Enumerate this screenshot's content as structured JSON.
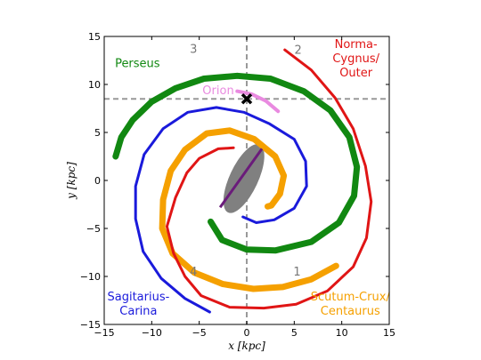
{
  "chart_data": {
    "type": "line",
    "xlabel": "x [kpc]",
    "ylabel": "y [kpc]",
    "xlim": [
      -15,
      15
    ],
    "ylim": [
      -15,
      15
    ],
    "xticks": [
      "−15",
      "−10",
      "−5",
      "0",
      "5",
      "10",
      "15"
    ],
    "yticks": [
      "−15",
      "−10",
      "−5",
      "0",
      "5",
      "10",
      "15"
    ],
    "grid": false,
    "sun": {
      "x": 0,
      "y": 8.5,
      "marker": "x",
      "color": "#000000"
    },
    "reference_lines": {
      "x": 0,
      "y": 8.5,
      "color": "#999999",
      "style": "dashed"
    },
    "bar": {
      "center": [
        -0.3,
        0.2
      ],
      "width": 3.0,
      "height": 7.8,
      "angle_deg": 25,
      "color": "#808080"
    },
    "long_bar": {
      "from": [
        -2.8,
        -2.8
      ],
      "to": [
        1.6,
        3.3
      ],
      "color": "#6a1b7a"
    },
    "quadrant_labels": [
      {
        "text": "1",
        "x": 5.3,
        "y": -9.6
      },
      {
        "text": "2",
        "x": 5.4,
        "y": 13.5
      },
      {
        "text": "3",
        "x": -5.6,
        "y": 13.6
      },
      {
        "text": "4",
        "x": -5.6,
        "y": -9.6
      }
    ],
    "series": [
      {
        "name": "Perseus",
        "color": "#118811",
        "width": 7,
        "points": [
          [
            -13.8,
            2.5
          ],
          [
            -13.2,
            4.5
          ],
          [
            -12.0,
            6.3
          ],
          [
            -10.0,
            8.2
          ],
          [
            -7.5,
            9.6
          ],
          [
            -4.5,
            10.6
          ],
          [
            -1.0,
            10.9
          ],
          [
            2.5,
            10.6
          ],
          [
            6.0,
            9.3
          ],
          [
            8.8,
            7.3
          ],
          [
            10.8,
            4.5
          ],
          [
            11.6,
            1.4
          ],
          [
            11.3,
            -1.6
          ],
          [
            9.7,
            -4.4
          ],
          [
            6.8,
            -6.4
          ],
          [
            3.0,
            -7.3
          ],
          [
            0.0,
            -7.2
          ],
          [
            -2.6,
            -6.2
          ],
          [
            -3.8,
            -4.3
          ]
        ]
      },
      {
        "name": "Sagitarius-\nCarina",
        "color": "#1a1adb",
        "width": 3,
        "points": [
          [
            -3.9,
            -13.7
          ],
          [
            -6.5,
            -12.3
          ],
          [
            -9.0,
            -10.2
          ],
          [
            -10.9,
            -7.4
          ],
          [
            -11.7,
            -4.0
          ],
          [
            -11.7,
            -0.6
          ],
          [
            -10.8,
            2.7
          ],
          [
            -8.8,
            5.4
          ],
          [
            -6.2,
            7.1
          ],
          [
            -3.2,
            7.6
          ],
          [
            -0.3,
            7.1
          ],
          [
            2.4,
            5.9
          ],
          [
            5.0,
            4.3
          ],
          [
            6.2,
            2.0
          ],
          [
            6.3,
            -0.6
          ],
          [
            5.0,
            -2.9
          ],
          [
            2.9,
            -4.1
          ],
          [
            1.0,
            -4.4
          ],
          [
            -0.4,
            -3.8
          ]
        ]
      },
      {
        "name": "Scutum-Crux/\nCentaurus",
        "color": "#f5a000",
        "width": 7,
        "points": [
          [
            9.4,
            -8.9
          ],
          [
            6.8,
            -10.3
          ],
          [
            3.8,
            -11.1
          ],
          [
            0.7,
            -11.3
          ],
          [
            -2.5,
            -10.8
          ],
          [
            -5.5,
            -9.6
          ],
          [
            -7.8,
            -7.6
          ],
          [
            -8.9,
            -5.0
          ],
          [
            -8.8,
            -2.0
          ],
          [
            -8.0,
            1.0
          ],
          [
            -6.5,
            3.2
          ],
          [
            -4.2,
            4.9
          ],
          [
            -1.8,
            5.2
          ],
          [
            0.8,
            4.3
          ],
          [
            3.0,
            2.5
          ],
          [
            3.9,
            0.5
          ],
          [
            3.5,
            -1.4
          ],
          [
            2.6,
            -2.6
          ],
          [
            2.2,
            -2.7
          ]
        ]
      },
      {
        "name": "Norma-\nCygnus/\nOuter",
        "color": "#e01515",
        "width": 3,
        "points": [
          [
            4.0,
            13.6
          ],
          [
            6.8,
            11.5
          ],
          [
            9.3,
            8.6
          ],
          [
            11.2,
            5.4
          ],
          [
            12.5,
            1.5
          ],
          [
            13.1,
            -2.2
          ],
          [
            12.6,
            -6.0
          ],
          [
            11.2,
            -9.0
          ],
          [
            8.5,
            -11.5
          ],
          [
            5.2,
            -12.9
          ],
          [
            1.8,
            -13.3
          ],
          [
            -1.8,
            -13.2
          ],
          [
            -4.8,
            -12.0
          ],
          [
            -6.5,
            -10.0
          ],
          [
            -7.7,
            -7.6
          ],
          [
            -8.4,
            -4.8
          ],
          [
            -7.5,
            -1.8
          ],
          [
            -6.3,
            0.8
          ],
          [
            -5.0,
            2.3
          ],
          [
            -3.0,
            3.3
          ],
          [
            -1.4,
            3.4
          ]
        ]
      },
      {
        "name": "Orion",
        "color": "#e98ae0",
        "width": 4,
        "points": [
          [
            -1.0,
            9.3
          ],
          [
            0.5,
            9.0
          ],
          [
            2.0,
            8.3
          ],
          [
            3.3,
            7.2
          ]
        ]
      }
    ],
    "arm_labels": [
      {
        "series": 0,
        "x": -11.5,
        "y": 11.8
      },
      {
        "series": 1,
        "x": -11.4,
        "y": -12.5
      },
      {
        "series": 2,
        "x": 10.9,
        "y": -12.5
      },
      {
        "series": 3,
        "x": 11.5,
        "y": 13.8
      },
      {
        "series": 4,
        "x": -3.0,
        "y": 9.0
      }
    ]
  }
}
